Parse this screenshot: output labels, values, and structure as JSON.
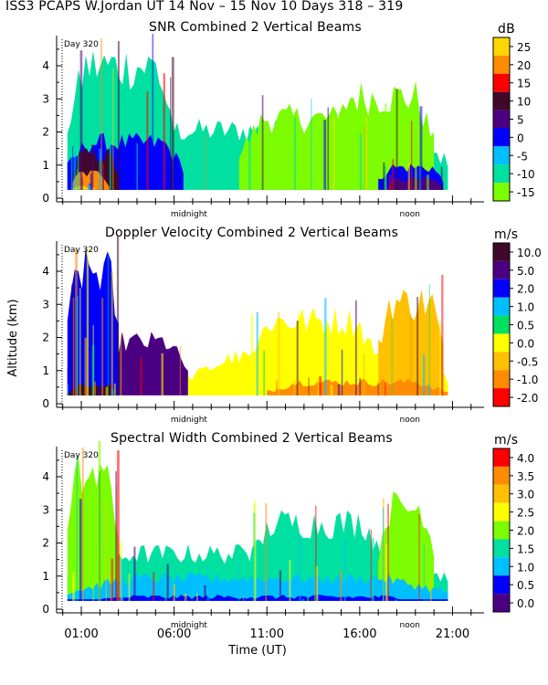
{
  "header": {
    "title": "ISS3 PCAPS W.Jordan UT  14 Nov – 15 Nov 10 Days 318 – 319"
  },
  "common": {
    "ylabel": "Altitude (km)",
    "xlabel": "Time (UT)",
    "day_marker": "Day 320",
    "midnight_label": "midnight",
    "noon_label": "noon",
    "x_ticks": [
      "01:00",
      "06:00",
      "11:00",
      "16:00",
      "21:00"
    ],
    "y_ticks": [
      "0",
      "1",
      "2",
      "3",
      "4"
    ]
  },
  "colors": {
    "background": "#ffffff",
    "axes": "#000000"
  },
  "chart_data": [
    {
      "type": "heatmap",
      "title": "SNR Combined 2 Vertical Beams",
      "unit": "dB",
      "xlim": [
        "00:00",
        "21:00"
      ],
      "ylim": [
        0,
        4.8
      ],
      "colorbar": {
        "labels": [
          "25",
          "20",
          "15",
          "10",
          "5",
          "0",
          "-5",
          "-10",
          "-15"
        ],
        "colors": [
          "#ffd700",
          "#ff8c00",
          "#ff0000",
          "#40082a",
          "#4b0082",
          "#0000ff",
          "#00bfff",
          "#00e0a0",
          "#7cfc00"
        ]
      },
      "layers": [
        {
          "start": "00:15",
          "end": "20:45",
          "top": 2.2,
          "level": 7
        },
        {
          "start": "09:30",
          "end": "17:30",
          "top": 2.6,
          "level": 8
        },
        {
          "start": "14:30",
          "end": "20:00",
          "top": 3.3,
          "level": 8
        },
        {
          "start": "00:15",
          "end": "06:00",
          "top": 4.3,
          "level": 7
        },
        {
          "start": "00:15",
          "end": "06:30",
          "top": 1.8,
          "level": 5
        },
        {
          "start": "00:30",
          "end": "03:00",
          "top": 1.4,
          "level": 3
        },
        {
          "start": "00:30",
          "end": "02:30",
          "top": 0.8,
          "level": 1
        },
        {
          "start": "00:30",
          "end": "01:45",
          "top": 0.4,
          "level": 0
        },
        {
          "start": "17:00",
          "end": "20:30",
          "top": 1.0,
          "level": 5
        },
        {
          "start": "17:30",
          "end": "20:30",
          "top": 0.6,
          "level": 4
        }
      ]
    },
    {
      "type": "heatmap",
      "title": "Doppler Velocity Combined 2 Vertical Beams",
      "unit": "m/s",
      "xlim": [
        "00:00",
        "21:00"
      ],
      "ylim": [
        0,
        4.8
      ],
      "colorbar": {
        "labels": [
          "10.0",
          "5.0",
          "2.0",
          "1.0",
          "0.5",
          "0.0",
          "-0.5",
          "-1.0",
          "-2.0"
        ],
        "colors": [
          "#40082a",
          "#4b0082",
          "#0000ff",
          "#00bfff",
          "#00e060",
          "#ffff00",
          "#ffc000",
          "#ff8c00",
          "#ff0000"
        ]
      },
      "layers": [
        {
          "start": "00:15",
          "end": "06:45",
          "top": 2.0,
          "level": 1
        },
        {
          "start": "00:15",
          "end": "03:00",
          "top": 4.3,
          "level": 2
        },
        {
          "start": "00:15",
          "end": "03:00",
          "top": 0.6,
          "level": 0
        },
        {
          "start": "06:45",
          "end": "20:45",
          "top": 1.5,
          "level": 5
        },
        {
          "start": "10:00",
          "end": "17:00",
          "top": 2.7,
          "level": 5
        },
        {
          "start": "17:00",
          "end": "20:30",
          "top": 3.3,
          "level": 6
        },
        {
          "start": "11:00",
          "end": "20:45",
          "top": 0.7,
          "level": 7
        }
      ]
    },
    {
      "type": "heatmap",
      "title": "Spectral Width Combined 2 Vertical Beams",
      "unit": "m/s",
      "xlim": [
        "00:00",
        "21:00"
      ],
      "ylim": [
        0,
        4.8
      ],
      "colorbar": {
        "labels": [
          "4.0",
          "3.5",
          "3.0",
          "2.5",
          "2.0",
          "1.5",
          "1.0",
          "0.5",
          "0.0"
        ],
        "colors": [
          "#ff0000",
          "#ff8c00",
          "#ffc000",
          "#ffff00",
          "#7cfc00",
          "#00e0a0",
          "#00bfff",
          "#0000ff",
          "#4b0082"
        ]
      },
      "layers": [
        {
          "start": "00:15",
          "end": "20:45",
          "top": 1.8,
          "level": 5
        },
        {
          "start": "00:15",
          "end": "03:00",
          "top": 4.3,
          "level": 4
        },
        {
          "start": "10:00",
          "end": "17:30",
          "top": 2.8,
          "level": 5
        },
        {
          "start": "17:00",
          "end": "20:00",
          "top": 3.3,
          "level": 4
        },
        {
          "start": "00:15",
          "end": "20:45",
          "top": 1.0,
          "level": 6
        },
        {
          "start": "00:15",
          "end": "20:45",
          "top": 0.4,
          "level": 7
        }
      ]
    }
  ]
}
